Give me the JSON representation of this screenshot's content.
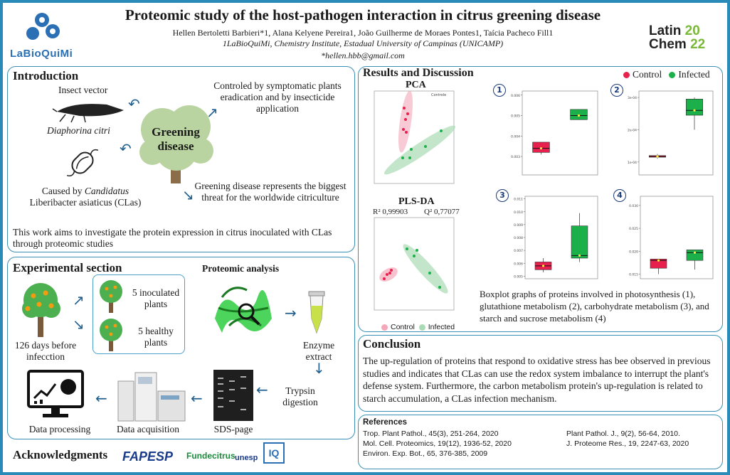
{
  "header": {
    "title": "Proteomic study of the host-pathogen interaction in citrus greening disease",
    "authors": "Hellen Bertoletti Barbieri*1, Alana Kelyene Pereira1, João Guilherme de Moraes Pontes1, Taícia Pacheco Fill1",
    "affiliation": "1LaBioQuiMi, Chemistry Institute, Estadual University of Campinas (UNICAMP)",
    "email": "*hellen.hbb@gmail.com",
    "left_logo": "LaBioQuiMi",
    "right_logo_line1": "Latin",
    "right_logo_line2": "Chem",
    "right_logo_year1": "20",
    "right_logo_year2": "22"
  },
  "introduction": {
    "heading": "Introduction",
    "insect_label": "Insect vector",
    "insect_species": "Diaphorina citri",
    "bacteria_caption_1": "Caused by ",
    "bacteria_caption_italic": "Candidatus",
    "bacteria_caption_2": "Liberibacter asiaticus (",
    "bacteria_caption_3": "CLas)",
    "center_label": "Greening disease",
    "control_text": "Controled by symptomatic plants eradication and by insecticide application",
    "threat_text": "Greening disease represents the biggest threat for the worldwide citriculture",
    "aim_text": "This work aims to investigate the protein expression in citrus inoculated with CLas through proteomic studies"
  },
  "experimental": {
    "heading": "Experimental section",
    "proteomic_heading": "Proteomic analysis",
    "days_label": "126 days before infecction",
    "inoculated_label": "5 inoculated plants",
    "healthy_label": "5 healthy plants",
    "enzyme_label": "Enzyme extract",
    "trypsin_label": "Trypsin digestion",
    "sds_label": "SDS-page",
    "acquisition_label": "Data acquisition",
    "processing_label": "Data processing"
  },
  "acknowledgments": {
    "heading": "Acknowledgments",
    "logos": [
      "FAPESP",
      "Fundecitrus",
      "unesp",
      "IQ"
    ]
  },
  "results": {
    "heading": "Results and Discussion",
    "legend_control": "Control",
    "legend_infected": "Infected",
    "pca_title": "PCA",
    "plsda_title": "PLS-DA",
    "r2": "R² 0,99903",
    "q2": "Q² 0,77077",
    "plsda_legend_control": "Control",
    "plsda_legend_infected": "Infected",
    "boxplot_numbers": [
      "1",
      "2",
      "3",
      "4"
    ],
    "caption": "Boxplot graphs of proteins involved in photosynthesis (1), glutathione metabolism (2), carbohydrate metabolism (3), and starch and sucrose metabolism (4)",
    "colors": {
      "control": "#e8204e",
      "infected": "#1bb04a"
    }
  },
  "conclusion": {
    "heading": "Conclusion",
    "text": "The up-regulation of proteins that respond to oxidative stress has bee observed in previous studies and indicates that CLas can use the redox system imbalance to interrupt the plant's defense system. Furthermore, the carbon metabolism protein's up-regulation is related to starch accumulation, a CLas infection mechanism."
  },
  "references": {
    "heading": "References",
    "left": [
      "Trop. Plant Pathol., 45(3), 251-264, 2020",
      "Mol. Cell. Proteomics, 19(12), 1936-52, 2020",
      "Environ. Exp. Bot., 65, 376-385, 2009"
    ],
    "right": [
      "Plant Pathol. J., 9(2), 56-64, 2010.",
      "J. Proteome Res., 19, 2247-63, 2020"
    ]
  },
  "chart_data": [
    {
      "type": "box",
      "id": "1",
      "series": [
        {
          "name": "Control",
          "q1": 0.0032,
          "median": 0.0034,
          "q3": 0.0037,
          "min": 0.0031,
          "max": 0.0037
        },
        {
          "name": "Infected",
          "q1": 0.0048,
          "median": 0.005,
          "q3": 0.0053,
          "min": 0.0048,
          "max": 0.0053
        }
      ],
      "yticks": [
        "0.003",
        "0.004",
        "0.005",
        "0.006"
      ],
      "ylim": [
        0.0021,
        0.0062
      ]
    },
    {
      "type": "box",
      "id": "2",
      "series": [
        {
          "name": "Control",
          "q1": 0.000115,
          "median": 0.000117,
          "q3": 0.00012,
          "min": 0.00011,
          "max": 0.000125
        },
        {
          "name": "Infected",
          "q1": 0.000245,
          "median": 0.00026,
          "q3": 0.000295,
          "min": 0.0002,
          "max": 0.0003
        }
      ],
      "yticks": [
        "1e-04",
        "2e-04",
        "3e-04"
      ],
      "ylim": [
        6e-05,
        0.00032
      ]
    },
    {
      "type": "box",
      "id": "3",
      "series": [
        {
          "name": "Control",
          "q1": 0.0055,
          "median": 0.0058,
          "q3": 0.0061,
          "min": 0.0053,
          "max": 0.0064
        },
        {
          "name": "Infected",
          "q1": 0.0064,
          "median": 0.0066,
          "q3": 0.0089,
          "min": 0.0061,
          "max": 0.0099
        }
      ],
      "yticks": [
        "0.005",
        "0.006",
        "0.007",
        "0.008",
        "0.009",
        "0.010",
        "0.011"
      ],
      "ylim": [
        0.0048,
        0.0112
      ]
    },
    {
      "type": "box",
      "id": "4",
      "series": [
        {
          "name": "Control",
          "q1": 0.0163,
          "median": 0.018,
          "q3": 0.0183,
          "min": 0.015,
          "max": 0.0183
        },
        {
          "name": "Infected",
          "q1": 0.018,
          "median": 0.0197,
          "q3": 0.0203,
          "min": 0.016,
          "max": 0.0203
        }
      ],
      "yticks": [
        "0.015",
        "0.020",
        "0.025",
        "0.030"
      ],
      "ylim": [
        0.014,
        0.032
      ]
    }
  ]
}
